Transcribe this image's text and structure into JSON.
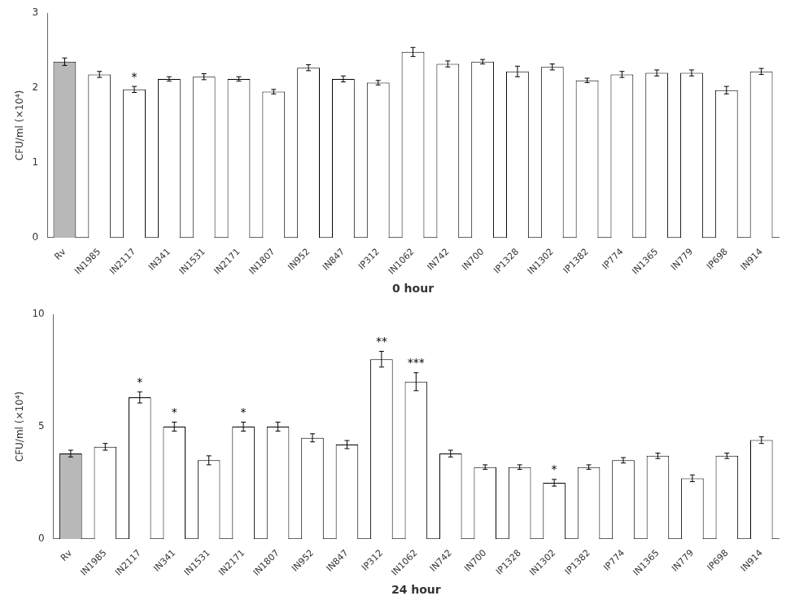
{
  "chart_data": [
    {
      "type": "bar",
      "categories": [
        "Rv",
        "IN1985",
        "IN2117",
        "IN341",
        "IN1531",
        "IN2171",
        "IN1807",
        "IN952",
        "IN847",
        "IP312",
        "IN1062",
        "IN742",
        "IN700",
        "IP1328",
        "IN1302",
        "IP1382",
        "IP774",
        "IN1365",
        "IN779",
        "IP698",
        "IN914"
      ],
      "values": [
        2.35,
        2.18,
        1.98,
        2.12,
        2.15,
        2.12,
        1.95,
        2.27,
        2.12,
        2.07,
        2.48,
        2.32,
        2.35,
        2.22,
        2.28,
        2.1,
        2.18,
        2.2,
        2.2,
        1.97,
        2.22
      ],
      "errors": [
        0.05,
        0.04,
        0.04,
        0.03,
        0.04,
        0.03,
        0.03,
        0.04,
        0.04,
        0.03,
        0.06,
        0.04,
        0.03,
        0.07,
        0.04,
        0.03,
        0.04,
        0.04,
        0.04,
        0.05,
        0.04
      ],
      "colors": [
        "#b8b8b8",
        "#ffffff",
        "#ffffff",
        "#ffffff",
        "#ffffff",
        "#ffffff",
        "#ffffff",
        "#ffffff",
        "#ffffff",
        "#ffffff",
        "#ffffff",
        "#ffffff",
        "#ffffff",
        "#ffffff",
        "#ffffff",
        "#ffffff",
        "#ffffff",
        "#ffffff",
        "#ffffff",
        "#ffffff",
        "#ffffff"
      ],
      "annotations": [
        {
          "x": "IN2117",
          "text": "*"
        }
      ],
      "xlabel": "0 hour",
      "ylabel": "CFU/ml (×10⁴)",
      "ylim": [
        0,
        3
      ],
      "yticks": [
        0,
        1,
        2,
        3
      ],
      "grid": false
    },
    {
      "type": "bar",
      "categories": [
        "Rv",
        "IN1985",
        "IN2117",
        "IN341",
        "IN1531",
        "IN2171",
        "IN1807",
        "IN952",
        "IN847",
        "IP312",
        "IN1062",
        "IN742",
        "IN700",
        "IP1328",
        "IN1302",
        "IP1382",
        "IP774",
        "IN1365",
        "IN779",
        "IP698",
        "IN914"
      ],
      "values": [
        3.8,
        4.1,
        6.3,
        5.0,
        3.5,
        5.0,
        5.0,
        4.5,
        4.2,
        8.0,
        7.0,
        3.8,
        3.2,
        3.2,
        2.5,
        3.2,
        3.5,
        3.7,
        2.7,
        3.7,
        4.4
      ],
      "errors": [
        0.15,
        0.15,
        0.25,
        0.2,
        0.2,
        0.2,
        0.2,
        0.18,
        0.18,
        0.35,
        0.4,
        0.15,
        0.1,
        0.1,
        0.15,
        0.1,
        0.12,
        0.12,
        0.15,
        0.12,
        0.15
      ],
      "colors": [
        "#b8b8b8",
        "#ffffff",
        "#ffffff",
        "#ffffff",
        "#ffffff",
        "#ffffff",
        "#ffffff",
        "#ffffff",
        "#ffffff",
        "#ffffff",
        "#ffffff",
        "#ffffff",
        "#ffffff",
        "#ffffff",
        "#ffffff",
        "#ffffff",
        "#ffffff",
        "#ffffff",
        "#ffffff",
        "#ffffff",
        "#ffffff"
      ],
      "annotations": [
        {
          "x": "IN2117",
          "text": "*"
        },
        {
          "x": "IN341",
          "text": "*"
        },
        {
          "x": "IN2171",
          "text": "*"
        },
        {
          "x": "IP312",
          "text": "**"
        },
        {
          "x": "IN1062",
          "text": "***"
        },
        {
          "x": "IN1302",
          "text": "*"
        }
      ],
      "xlabel": "24 hour",
      "ylabel": "CFU/ml (×10⁴)",
      "ylim": [
        0,
        10
      ],
      "yticks": [
        0,
        5,
        10
      ],
      "grid": false
    }
  ]
}
